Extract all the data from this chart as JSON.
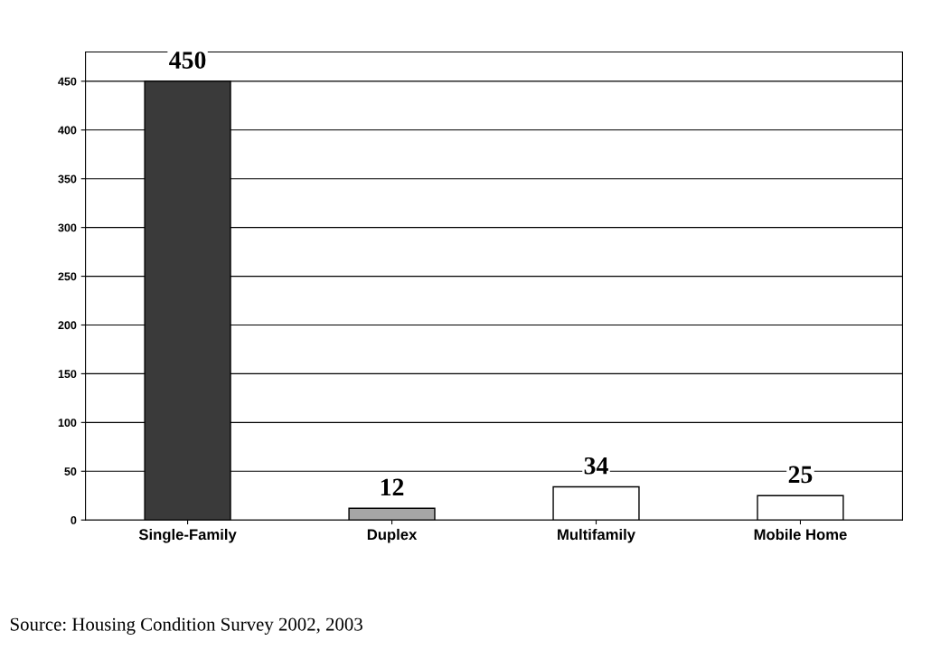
{
  "chart_data": {
    "type": "bar",
    "categories": [
      "Single-Family",
      "Duplex",
      "Multifamily",
      "Mobile Home"
    ],
    "values": [
      450,
      12,
      34,
      25
    ],
    "colors": [
      "#3a3a3a",
      "#a6a6a6",
      "#ffffff",
      "#ffffff"
    ],
    "ylim": [
      0,
      480
    ],
    "yticks": [
      0,
      50,
      100,
      150,
      200,
      250,
      300,
      350,
      400,
      450
    ],
    "grid": "y",
    "data_labels": true,
    "annotations": [
      "Source: Housing Condition Survey 2002, 2003"
    ]
  }
}
